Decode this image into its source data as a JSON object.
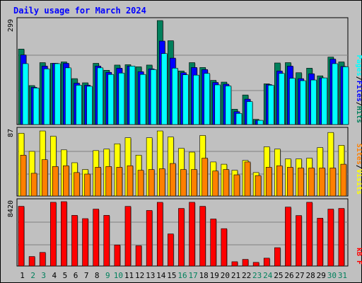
{
  "title": "Daily usage for March 2024",
  "colors": {
    "background": "#c0c0c0",
    "border": "#000000",
    "title": "#0000ff",
    "hits": "#00805c",
    "files": "#0000ff",
    "pages": "#00ffff",
    "visits": "#ffff00",
    "sites": "#ff8000",
    "kbf": "#ff0000",
    "day_normal": "#000000",
    "day_weekend": "#00805c"
  },
  "chart_data": [
    {
      "type": "bar",
      "panel": "hits_files_pages",
      "categories": [
        "1",
        "2",
        "3",
        "4",
        "5",
        "6",
        "7",
        "8",
        "9",
        "10",
        "11",
        "12",
        "13",
        "14",
        "15",
        "16",
        "17",
        "18",
        "19",
        "20",
        "21",
        "22",
        "23",
        "24",
        "25",
        "26",
        "27",
        "28",
        "29",
        "30",
        "31"
      ],
      "weekend_days": [
        "2",
        "3",
        "9",
        "10",
        "16",
        "17",
        "23",
        "24",
        "30",
        "31"
      ],
      "ymax": 299,
      "ymax_label": "299",
      "legend": [
        {
          "name": "Hits",
          "color_key": "hits"
        },
        {
          "name": "Files",
          "color_key": "files"
        },
        {
          "name": "Pages",
          "color_key": "pages"
        }
      ],
      "legend_separator": "/",
      "series": [
        {
          "name": "Hits",
          "color_key": "hits",
          "values": [
            217,
            112,
            178,
            176,
            180,
            132,
            120,
            176,
            156,
            171,
            172,
            166,
            171,
            299,
            241,
            154,
            178,
            164,
            127,
            122,
            44,
            85,
            15,
            117,
            177,
            178,
            149,
            162,
            140,
            194,
            180
          ]
        },
        {
          "name": "Files",
          "color_key": "files",
          "values": [
            200,
            107,
            168,
            176,
            176,
            119,
            113,
            168,
            150,
            162,
            168,
            152,
            160,
            240,
            191,
            149,
            164,
            158,
            121,
            116,
            37,
            73,
            12,
            115,
            154,
            168,
            132,
            146,
            134,
            188,
            167
          ]
        },
        {
          "name": "Pages",
          "color_key": "pages",
          "values": [
            175,
            105,
            160,
            175,
            163,
            113,
            110,
            163,
            144,
            148,
            168,
            144,
            158,
            204,
            162,
            143,
            142,
            147,
            114,
            111,
            32,
            66,
            12,
            113,
            147,
            133,
            126,
            128,
            134,
            175,
            166
          ]
        }
      ]
    },
    {
      "type": "bar",
      "panel": "visits_sites",
      "categories": [
        "1",
        "2",
        "3",
        "4",
        "5",
        "6",
        "7",
        "8",
        "9",
        "10",
        "11",
        "12",
        "13",
        "14",
        "15",
        "16",
        "17",
        "18",
        "19",
        "20",
        "21",
        "22",
        "23",
        "24",
        "25",
        "26",
        "27",
        "28",
        "29",
        "30",
        "31"
      ],
      "ymax": 87,
      "ymax_label": "87",
      "legend": [
        {
          "name": "Visits",
          "color_key": "visits"
        },
        {
          "name": "Sites",
          "color_key": "sites"
        }
      ],
      "legend_separator": "/",
      "series": [
        {
          "name": "Visits",
          "color_key": "visits",
          "values": [
            83,
            59,
            86,
            79,
            61,
            44,
            35,
            60,
            62,
            69,
            77,
            54,
            77,
            86,
            78,
            63,
            58,
            80,
            45,
            42,
            34,
            47,
            31,
            65,
            62,
            49,
            49,
            50,
            64,
            84,
            67
          ]
        },
        {
          "name": "Sites",
          "color_key": "sites",
          "values": [
            54,
            30,
            48,
            39,
            40,
            31,
            29,
            38,
            39,
            38,
            40,
            34,
            35,
            36,
            43,
            35,
            35,
            50,
            33,
            35,
            28,
            45,
            27,
            38,
            40,
            38,
            37,
            37,
            37,
            37,
            42
          ]
        }
      ]
    },
    {
      "type": "bar",
      "panel": "kbf",
      "categories": [
        "1",
        "2",
        "3",
        "4",
        "5",
        "6",
        "7",
        "8",
        "9",
        "10",
        "11",
        "12",
        "13",
        "14",
        "15",
        "16",
        "17",
        "18",
        "19",
        "20",
        "21",
        "22",
        "23",
        "24",
        "25",
        "26",
        "27",
        "28",
        "29",
        "30",
        "31"
      ],
      "ymax": 8420,
      "ymax_label": "8420",
      "legend": [
        {
          "name": "kB F",
          "color_key": "kbf"
        }
      ],
      "series": [
        {
          "name": "kB F",
          "color_key": "kbf",
          "values": [
            7812,
            1244,
            1779,
            8336,
            8420,
            6627,
            6199,
            7445,
            6627,
            2755,
            7801,
            2666,
            7268,
            8331,
            4200,
            7534,
            8336,
            7812,
            6152,
            4888,
            564,
            871,
            480,
            1031,
            2400,
            7712,
            6605,
            8336,
            6258,
            7445,
            7534
          ]
        }
      ]
    }
  ]
}
